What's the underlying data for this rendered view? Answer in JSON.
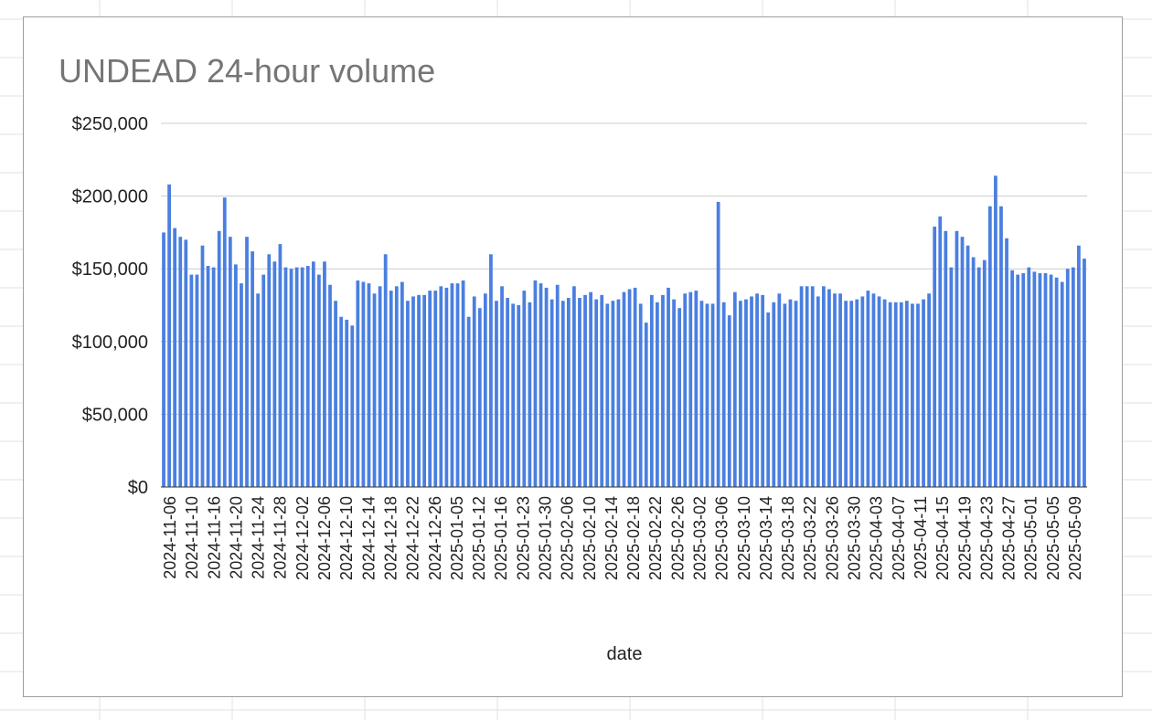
{
  "chart_data": {
    "type": "bar",
    "title": "UNDEAD 24-hour volume",
    "xlabel": "date",
    "ylabel": "",
    "ylim": [
      0,
      250000
    ],
    "yticks": [
      {
        "value": 0,
        "label": "$0"
      },
      {
        "value": 50000,
        "label": "$50,000"
      },
      {
        "value": 100000,
        "label": "$100,000"
      },
      {
        "value": 150000,
        "label": "$150,000"
      },
      {
        "value": 200000,
        "label": "$200,000"
      },
      {
        "value": 250000,
        "label": "$250,000"
      }
    ],
    "xtick_labels": [
      "2024-11-06",
      "2024-11-10",
      "2024-11-16",
      "2024-11-20",
      "2024-11-24",
      "2024-11-28",
      "2024-12-02",
      "2024-12-06",
      "2024-12-10",
      "2024-12-14",
      "2024-12-18",
      "2024-12-22",
      "2024-12-26",
      "2025-01-05",
      "2025-01-12",
      "2025-01-16",
      "2025-01-23",
      "2025-01-30",
      "2025-02-06",
      "2025-02-10",
      "2025-02-14",
      "2025-02-18",
      "2025-02-22",
      "2025-02-26",
      "2025-03-02",
      "2025-03-06",
      "2025-03-10",
      "2025-03-14",
      "2025-03-18",
      "2025-03-22",
      "2025-03-26",
      "2025-03-30",
      "2025-04-03",
      "2025-04-07",
      "2025-04-11",
      "2025-04-15",
      "2025-04-19",
      "2025-04-23",
      "2025-04-27",
      "2025-05-01",
      "2025-05-05",
      "2025-05-09"
    ],
    "bar_color": "#4a7fe0",
    "grid": true,
    "legend": "none",
    "values": [
      175000,
      208000,
      178000,
      172000,
      170000,
      146000,
      146000,
      166000,
      152000,
      151000,
      176000,
      199000,
      172000,
      153000,
      140000,
      172000,
      162000,
      133000,
      146000,
      160000,
      155000,
      167000,
      151000,
      150000,
      151000,
      151000,
      152000,
      155000,
      146000,
      155000,
      139000,
      128000,
      117000,
      115000,
      111000,
      142000,
      141000,
      140000,
      133000,
      138000,
      160000,
      135000,
      138000,
      141000,
      128000,
      131000,
      132000,
      132000,
      135000,
      135000,
      138000,
      137000,
      140000,
      140000,
      142000,
      117000,
      131000,
      123000,
      133000,
      160000,
      128000,
      138000,
      130000,
      126000,
      125000,
      135000,
      127000,
      142000,
      140000,
      137000,
      129000,
      139000,
      128000,
      130000,
      138000,
      130000,
      132000,
      134000,
      129000,
      132000,
      126000,
      128000,
      129000,
      134000,
      136000,
      137000,
      126000,
      113000,
      132000,
      127000,
      132000,
      137000,
      129000,
      123000,
      133000,
      134000,
      135000,
      128000,
      126000,
      126000,
      196000,
      127000,
      118000,
      134000,
      128000,
      129000,
      131000,
      133000,
      132000,
      120000,
      127000,
      133000,
      126000,
      129000,
      128000,
      138000,
      138000,
      138000,
      131000,
      138000,
      136000,
      133000,
      133000,
      128000,
      128000,
      129000,
      131000,
      135000,
      133000,
      131000,
      129000,
      127000,
      127000,
      127000,
      128000,
      126000,
      126000,
      129000,
      133000,
      179000,
      186000,
      176000,
      151000,
      176000,
      172000,
      166000,
      158000,
      151000,
      156000,
      193000,
      214000,
      193000,
      171000,
      149000,
      146000,
      147000,
      151000,
      148000,
      147000,
      147000,
      146000,
      144000,
      141000,
      150000,
      151000,
      166000,
      157000
    ]
  }
}
